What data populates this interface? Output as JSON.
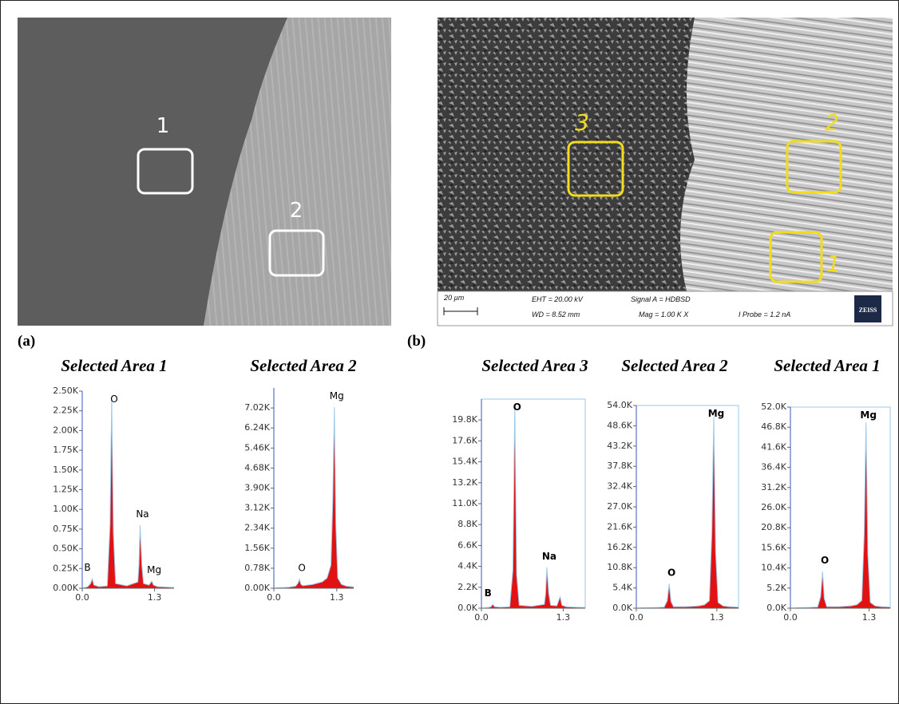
{
  "panels": [
    "(a)",
    "(b)"
  ],
  "images": {
    "a": {
      "labels": [
        "1",
        "2"
      ]
    },
    "b": {
      "labels": [
        "3",
        "2",
        "1"
      ],
      "info": [
        "20 µm",
        "EHT = 20.00 kV",
        "WD = 8.52 mm",
        "Signal A = HDBSD",
        "Mag =   1.00 K X",
        "I Probe =   1.2 nA",
        "ZEISS"
      ]
    }
  },
  "chart_data": [
    {
      "type": "area",
      "title": "Selected Area 1",
      "color": "#e31212",
      "x": [
        0,
        0.1,
        0.15,
        0.18,
        0.21,
        0.3,
        0.45,
        0.5,
        0.53,
        0.56,
        0.6,
        0.8,
        1.0,
        1.02,
        1.04,
        1.07,
        1.1,
        1.2,
        1.25,
        1.28,
        1.35,
        1.5,
        1.65
      ],
      "values": [
        0,
        20,
        60,
        120,
        40,
        20,
        30,
        800,
        2400,
        700,
        60,
        30,
        80,
        300,
        800,
        300,
        60,
        40,
        90,
        40,
        20,
        15,
        10
      ],
      "xlim": [
        0,
        1.65
      ],
      "xticks": [
        {
          "value": 0,
          "label": "0.0"
        },
        1.3
      ],
      "ylim": [
        0,
        2500
      ],
      "yticks": [
        {
          "value": 0,
          "label": "0.00K"
        },
        {
          "value": 250,
          "label": "0.25K"
        },
        {
          "value": 500,
          "label": "0.50K"
        },
        {
          "value": 750,
          "label": "0.75K"
        },
        {
          "value": 1000,
          "label": "1.00K"
        },
        {
          "value": 1250,
          "label": "1.25K"
        },
        {
          "value": 1500,
          "label": "1.50K"
        },
        {
          "value": 1750,
          "label": "1.75K"
        },
        {
          "value": 2000,
          "label": "2.00K"
        },
        {
          "value": 2250,
          "label": "2.25K"
        },
        {
          "value": 2500,
          "label": "2.50K"
        }
      ],
      "annotations": [
        {
          "text": "B",
          "x": 0.18
        },
        {
          "text": "O",
          "x": 0.53
        },
        {
          "text": "Na",
          "x": 1.04
        },
        {
          "text": "Mg",
          "x": 1.25
        }
      ]
    },
    {
      "type": "area",
      "title": "Selected Area 2",
      "color": "#e31212",
      "x": [
        0,
        0.1,
        0.3,
        0.45,
        0.5,
        0.53,
        0.56,
        0.6,
        0.8,
        1.0,
        1.1,
        1.18,
        1.22,
        1.25,
        1.28,
        1.32,
        1.4,
        1.5,
        1.65
      ],
      "values": [
        0,
        20,
        40,
        80,
        200,
        350,
        150,
        100,
        150,
        250,
        400,
        900,
        3500,
        7050,
        2500,
        400,
        150,
        80,
        50
      ],
      "xlim": [
        0,
        1.65
      ],
      "xticks": [
        {
          "value": 0,
          "label": "0.0"
        },
        1.3
      ],
      "ylim": [
        0,
        7800
      ],
      "yticks": [
        {
          "value": 0,
          "label": "0.00K"
        },
        {
          "value": 780,
          "label": "0.78K"
        },
        {
          "value": 1560,
          "label": "1.56K"
        },
        {
          "value": 2340,
          "label": "2.34K"
        },
        {
          "value": 3120,
          "label": "3.12K"
        },
        {
          "value": 3900,
          "label": "3.90K"
        },
        {
          "value": 4680,
          "label": "4.68K"
        },
        {
          "value": 5460,
          "label": "5.46K"
        },
        {
          "value": 6240,
          "label": "6.24K"
        },
        {
          "value": 7020,
          "label": "7.02K"
        }
      ],
      "annotations": [
        {
          "text": "O",
          "x": 0.53
        },
        {
          "text": "Mg",
          "x": 1.25
        }
      ]
    },
    {
      "type": "area",
      "title": "Selected Area 3",
      "color": "#e31212",
      "x": [
        0,
        0.1,
        0.15,
        0.18,
        0.21,
        0.3,
        0.45,
        0.5,
        0.53,
        0.56,
        0.6,
        0.8,
        1.0,
        1.02,
        1.04,
        1.07,
        1.1,
        1.2,
        1.25,
        1.28,
        1.35,
        1.5,
        1.65
      ],
      "values": [
        0,
        50,
        150,
        400,
        150,
        100,
        150,
        4000,
        21500,
        3500,
        300,
        200,
        400,
        1500,
        4300,
        1500,
        300,
        250,
        1200,
        300,
        150,
        100,
        80
      ],
      "xlim": [
        0,
        1.65
      ],
      "xticks": [
        {
          "value": 0,
          "label": "0.0"
        },
        1.3
      ],
      "ylim": [
        0,
        22000
      ],
      "yticks": [
        {
          "value": 0,
          "label": "0.0K"
        },
        {
          "value": 2200,
          "label": "2.2K"
        },
        {
          "value": 4400,
          "label": "4.4K"
        },
        {
          "value": 6600,
          "label": "6.6K"
        },
        {
          "value": 8800,
          "label": "8.8K"
        },
        {
          "value": 11000,
          "label": "11.0K"
        },
        {
          "value": 13200,
          "label": "13.2K"
        },
        {
          "value": 15400,
          "label": "15.4K"
        },
        {
          "value": 17600,
          "label": "17.6K"
        },
        {
          "value": 19800,
          "label": "19.8K"
        }
      ],
      "annotations": [
        {
          "text": "B",
          "x": 0.18
        },
        {
          "text": "O",
          "x": 0.53
        },
        {
          "text": "Na",
          "x": 1.04
        }
      ]
    },
    {
      "type": "area",
      "title": "Selected Area 2",
      "color": "#e31212",
      "x": [
        0,
        0.1,
        0.3,
        0.45,
        0.5,
        0.53,
        0.56,
        0.6,
        0.8,
        1.0,
        1.1,
        1.18,
        1.22,
        1.25,
        1.28,
        1.32,
        1.4,
        1.5,
        1.65
      ],
      "values": [
        0,
        100,
        200,
        300,
        2000,
        6500,
        1800,
        400,
        400,
        600,
        900,
        2000,
        20000,
        51000,
        15000,
        1500,
        600,
        400,
        300
      ],
      "xlim": [
        0,
        1.65
      ],
      "xticks": [
        {
          "value": 0,
          "label": "0.0"
        },
        1.3
      ],
      "ylim": [
        0,
        54000
      ],
      "yticks": [
        {
          "value": 0,
          "label": "0.0K"
        },
        {
          "value": 5400,
          "label": "5.4K"
        },
        {
          "value": 10800,
          "label": "10.8K"
        },
        {
          "value": 16200,
          "label": "16.2K"
        },
        {
          "value": 21600,
          "label": "21.6K"
        },
        {
          "value": 27000,
          "label": "27.0K"
        },
        {
          "value": 32400,
          "label": "32.4K"
        },
        {
          "value": 37800,
          "label": "37.8K"
        },
        {
          "value": 43200,
          "label": "43.2K"
        },
        {
          "value": 48600,
          "label": "48.6K"
        },
        {
          "value": 54000,
          "label": "54.0K"
        }
      ],
      "annotations": [
        {
          "text": "O",
          "x": 0.53
        },
        {
          "text": "Mg",
          "x": 1.25
        }
      ]
    },
    {
      "type": "area",
      "title": "Selected Area 1",
      "color": "#e31212",
      "x": [
        0,
        0.1,
        0.3,
        0.45,
        0.5,
        0.53,
        0.56,
        0.6,
        0.8,
        1.0,
        1.1,
        1.18,
        1.22,
        1.25,
        1.28,
        1.32,
        1.4,
        1.5,
        1.65
      ],
      "values": [
        0,
        100,
        200,
        300,
        3000,
        9500,
        2500,
        400,
        400,
        600,
        900,
        2000,
        19000,
        48000,
        14000,
        1500,
        600,
        400,
        300
      ],
      "xlim": [
        0,
        1.65
      ],
      "xticks": [
        {
          "value": 0,
          "label": "0.0"
        },
        1.3
      ],
      "ylim": [
        0,
        52000
      ],
      "yticks": [
        {
          "value": 0,
          "label": "0.0K"
        },
        {
          "value": 5200,
          "label": "5.2K"
        },
        {
          "value": 10400,
          "label": "10.4K"
        },
        {
          "value": 15600,
          "label": "15.6K"
        },
        {
          "value": 20800,
          "label": "20.8K"
        },
        {
          "value": 26000,
          "label": "26.0K"
        },
        {
          "value": 31200,
          "label": "31.2K"
        },
        {
          "value": 36400,
          "label": "36.4K"
        },
        {
          "value": 41600,
          "label": "41.6K"
        },
        {
          "value": 46800,
          "label": "46.8K"
        },
        {
          "value": 52000,
          "label": "52.0K"
        }
      ],
      "annotations": [
        {
          "text": "O",
          "x": 0.53
        },
        {
          "text": "Mg",
          "x": 1.25
        }
      ]
    }
  ]
}
